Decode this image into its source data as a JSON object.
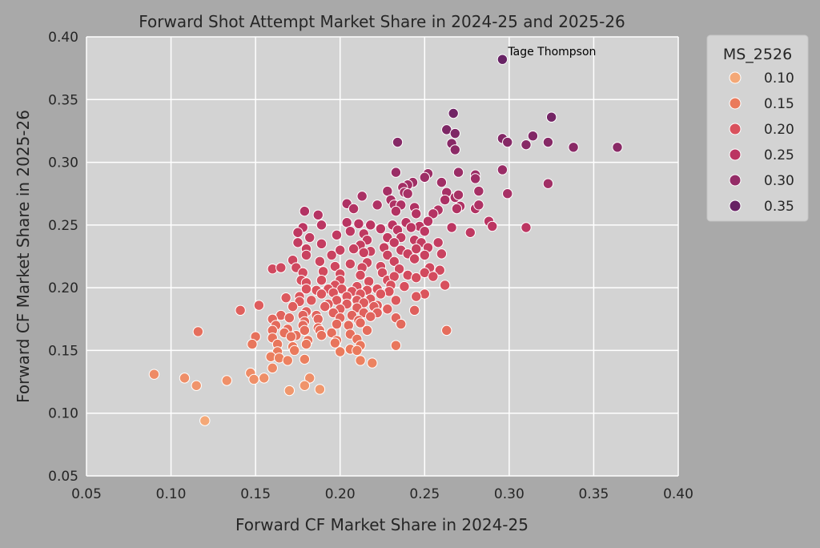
{
  "chart_data": {
    "type": "scatter",
    "title": "Forward Shot Attempt Market Share in 2024-25 and 2025-26",
    "xlabel": "Forward CF Market Share in 2024-25",
    "ylabel": "Forward CF Market Share in 2025-26",
    "xlim": [
      0.05,
      0.4
    ],
    "ylim": [
      0.05,
      0.4
    ],
    "xticks": [
      "0.05",
      "0.10",
      "0.15",
      "0.20",
      "0.25",
      "0.30",
      "0.35",
      "0.40"
    ],
    "yticks": [
      "0.05",
      "0.10",
      "0.15",
      "0.20",
      "0.25",
      "0.30",
      "0.35",
      "0.40"
    ],
    "grid": true,
    "colors": {
      "page_background": "#a9a9a9",
      "plot_background": "#d3d3d3",
      "grid": "#ffffff",
      "point_edge": "#ffffff"
    },
    "legend": {
      "title": "MS_2526",
      "placement": "outside-right-top",
      "entries": [
        {
          "label": "0.10",
          "color": "#f4a877"
        },
        {
          "label": "0.15",
          "color": "#ea7a5c"
        },
        {
          "label": "0.20",
          "color": "#d9515d"
        },
        {
          "label": "0.25",
          "color": "#bb3562"
        },
        {
          "label": "0.30",
          "color": "#942c67"
        },
        {
          "label": "0.35",
          "color": "#672264"
        }
      ]
    },
    "annotations": [
      {
        "text": "Tage Thompson",
        "x": 0.296,
        "y": 0.382
      }
    ],
    "hue_variable": "MS_2526",
    "points": [
      [
        0.296,
        0.382
      ],
      [
        0.267,
        0.339
      ],
      [
        0.325,
        0.336
      ],
      [
        0.263,
        0.326
      ],
      [
        0.268,
        0.323
      ],
      [
        0.314,
        0.321
      ],
      [
        0.296,
        0.319
      ],
      [
        0.234,
        0.316
      ],
      [
        0.266,
        0.315
      ],
      [
        0.299,
        0.316
      ],
      [
        0.31,
        0.314
      ],
      [
        0.323,
        0.316
      ],
      [
        0.338,
        0.312
      ],
      [
        0.364,
        0.312
      ],
      [
        0.268,
        0.31
      ],
      [
        0.296,
        0.294
      ],
      [
        0.233,
        0.292
      ],
      [
        0.252,
        0.291
      ],
      [
        0.27,
        0.292
      ],
      [
        0.28,
        0.29
      ],
      [
        0.25,
        0.288
      ],
      [
        0.28,
        0.287
      ],
      [
        0.243,
        0.284
      ],
      [
        0.24,
        0.282
      ],
      [
        0.237,
        0.28
      ],
      [
        0.26,
        0.284
      ],
      [
        0.323,
        0.283
      ],
      [
        0.228,
        0.277
      ],
      [
        0.238,
        0.276
      ],
      [
        0.263,
        0.276
      ],
      [
        0.282,
        0.277
      ],
      [
        0.24,
        0.275
      ],
      [
        0.268,
        0.272
      ],
      [
        0.299,
        0.275
      ],
      [
        0.213,
        0.273
      ],
      [
        0.23,
        0.27
      ],
      [
        0.262,
        0.27
      ],
      [
        0.27,
        0.274
      ],
      [
        0.204,
        0.267
      ],
      [
        0.222,
        0.266
      ],
      [
        0.232,
        0.266
      ],
      [
        0.258,
        0.262
      ],
      [
        0.271,
        0.265
      ],
      [
        0.28,
        0.263
      ],
      [
        0.282,
        0.266
      ],
      [
        0.208,
        0.263
      ],
      [
        0.236,
        0.266
      ],
      [
        0.244,
        0.264
      ],
      [
        0.245,
        0.259
      ],
      [
        0.233,
        0.261
      ],
      [
        0.255,
        0.259
      ],
      [
        0.269,
        0.263
      ],
      [
        0.179,
        0.261
      ],
      [
        0.187,
        0.258
      ],
      [
        0.189,
        0.25
      ],
      [
        0.204,
        0.252
      ],
      [
        0.211,
        0.251
      ],
      [
        0.218,
        0.25
      ],
      [
        0.231,
        0.25
      ],
      [
        0.239,
        0.252
      ],
      [
        0.247,
        0.249
      ],
      [
        0.252,
        0.253
      ],
      [
        0.288,
        0.253
      ],
      [
        0.178,
        0.248
      ],
      [
        0.206,
        0.245
      ],
      [
        0.214,
        0.243
      ],
      [
        0.224,
        0.247
      ],
      [
        0.234,
        0.246
      ],
      [
        0.242,
        0.248
      ],
      [
        0.25,
        0.245
      ],
      [
        0.266,
        0.248
      ],
      [
        0.277,
        0.244
      ],
      [
        0.29,
        0.249
      ],
      [
        0.31,
        0.248
      ],
      [
        0.175,
        0.244
      ],
      [
        0.182,
        0.24
      ],
      [
        0.198,
        0.242
      ],
      [
        0.216,
        0.238
      ],
      [
        0.228,
        0.24
      ],
      [
        0.236,
        0.24
      ],
      [
        0.244,
        0.238
      ],
      [
        0.175,
        0.236
      ],
      [
        0.189,
        0.235
      ],
      [
        0.212,
        0.234
      ],
      [
        0.232,
        0.236
      ],
      [
        0.248,
        0.236
      ],
      [
        0.258,
        0.236
      ],
      [
        0.18,
        0.231
      ],
      [
        0.2,
        0.23
      ],
      [
        0.208,
        0.231
      ],
      [
        0.218,
        0.229
      ],
      [
        0.226,
        0.232
      ],
      [
        0.236,
        0.23
      ],
      [
        0.245,
        0.231
      ],
      [
        0.252,
        0.232
      ],
      [
        0.18,
        0.226
      ],
      [
        0.195,
        0.226
      ],
      [
        0.214,
        0.228
      ],
      [
        0.228,
        0.226
      ],
      [
        0.24,
        0.227
      ],
      [
        0.25,
        0.226
      ],
      [
        0.26,
        0.227
      ],
      [
        0.172,
        0.222
      ],
      [
        0.188,
        0.221
      ],
      [
        0.206,
        0.219
      ],
      [
        0.216,
        0.22
      ],
      [
        0.232,
        0.221
      ],
      [
        0.244,
        0.223
      ],
      [
        0.174,
        0.216
      ],
      [
        0.197,
        0.217
      ],
      [
        0.213,
        0.216
      ],
      [
        0.224,
        0.217
      ],
      [
        0.235,
        0.215
      ],
      [
        0.253,
        0.216
      ],
      [
        0.259,
        0.214
      ],
      [
        0.16,
        0.215
      ],
      [
        0.165,
        0.216
      ],
      [
        0.178,
        0.212
      ],
      [
        0.19,
        0.213
      ],
      [
        0.2,
        0.211
      ],
      [
        0.212,
        0.21
      ],
      [
        0.225,
        0.212
      ],
      [
        0.24,
        0.21
      ],
      [
        0.25,
        0.212
      ],
      [
        0.255,
        0.209
      ],
      [
        0.177,
        0.206
      ],
      [
        0.189,
        0.206
      ],
      [
        0.2,
        0.206
      ],
      [
        0.217,
        0.205
      ],
      [
        0.228,
        0.206
      ],
      [
        0.232,
        0.209
      ],
      [
        0.245,
        0.208
      ],
      [
        0.18,
        0.204
      ],
      [
        0.197,
        0.202
      ],
      [
        0.21,
        0.201
      ],
      [
        0.23,
        0.202
      ],
      [
        0.238,
        0.201
      ],
      [
        0.262,
        0.202
      ],
      [
        0.18,
        0.199
      ],
      [
        0.186,
        0.198
      ],
      [
        0.193,
        0.199
      ],
      [
        0.201,
        0.199
      ],
      [
        0.207,
        0.197
      ],
      [
        0.216,
        0.198
      ],
      [
        0.222,
        0.199
      ],
      [
        0.229,
        0.197
      ],
      [
        0.176,
        0.193
      ],
      [
        0.189,
        0.195
      ],
      [
        0.196,
        0.196
      ],
      [
        0.204,
        0.193
      ],
      [
        0.212,
        0.195
      ],
      [
        0.224,
        0.195
      ],
      [
        0.25,
        0.195
      ],
      [
        0.168,
        0.192
      ],
      [
        0.183,
        0.19
      ],
      [
        0.198,
        0.19
      ],
      [
        0.21,
        0.19
      ],
      [
        0.218,
        0.191
      ],
      [
        0.233,
        0.19
      ],
      [
        0.245,
        0.193
      ],
      [
        0.176,
        0.189
      ],
      [
        0.193,
        0.187
      ],
      [
        0.204,
        0.187
      ],
      [
        0.214,
        0.188
      ],
      [
        0.222,
        0.186
      ],
      [
        0.141,
        0.182
      ],
      [
        0.152,
        0.186
      ],
      [
        0.172,
        0.185
      ],
      [
        0.18,
        0.181
      ],
      [
        0.191,
        0.185
      ],
      [
        0.2,
        0.183
      ],
      [
        0.21,
        0.184
      ],
      [
        0.22,
        0.185
      ],
      [
        0.244,
        0.182
      ],
      [
        0.165,
        0.178
      ],
      [
        0.178,
        0.178
      ],
      [
        0.186,
        0.178
      ],
      [
        0.196,
        0.18
      ],
      [
        0.207,
        0.178
      ],
      [
        0.214,
        0.18
      ],
      [
        0.222,
        0.18
      ],
      [
        0.228,
        0.183
      ],
      [
        0.16,
        0.175
      ],
      [
        0.17,
        0.176
      ],
      [
        0.179,
        0.173
      ],
      [
        0.187,
        0.175
      ],
      [
        0.2,
        0.176
      ],
      [
        0.211,
        0.174
      ],
      [
        0.218,
        0.177
      ],
      [
        0.233,
        0.176
      ],
      [
        0.162,
        0.17
      ],
      [
        0.169,
        0.167
      ],
      [
        0.178,
        0.17
      ],
      [
        0.187,
        0.168
      ],
      [
        0.198,
        0.171
      ],
      [
        0.205,
        0.17
      ],
      [
        0.212,
        0.172
      ],
      [
        0.236,
        0.171
      ],
      [
        0.16,
        0.166
      ],
      [
        0.167,
        0.164
      ],
      [
        0.174,
        0.162
      ],
      [
        0.179,
        0.166
      ],
      [
        0.188,
        0.166
      ],
      [
        0.195,
        0.164
      ],
      [
        0.206,
        0.163
      ],
      [
        0.216,
        0.166
      ],
      [
        0.263,
        0.166
      ],
      [
        0.116,
        0.165
      ],
      [
        0.15,
        0.161
      ],
      [
        0.16,
        0.16
      ],
      [
        0.171,
        0.161
      ],
      [
        0.181,
        0.158
      ],
      [
        0.189,
        0.162
      ],
      [
        0.198,
        0.158
      ],
      [
        0.21,
        0.159
      ],
      [
        0.148,
        0.155
      ],
      [
        0.163,
        0.155
      ],
      [
        0.172,
        0.153
      ],
      [
        0.18,
        0.155
      ],
      [
        0.197,
        0.156
      ],
      [
        0.206,
        0.151
      ],
      [
        0.212,
        0.154
      ],
      [
        0.233,
        0.154
      ],
      [
        0.163,
        0.149
      ],
      [
        0.173,
        0.15
      ],
      [
        0.2,
        0.149
      ],
      [
        0.21,
        0.15
      ],
      [
        0.159,
        0.145
      ],
      [
        0.164,
        0.144
      ],
      [
        0.179,
        0.143
      ],
      [
        0.169,
        0.142
      ],
      [
        0.212,
        0.142
      ],
      [
        0.219,
        0.14
      ],
      [
        0.16,
        0.136
      ],
      [
        0.09,
        0.131
      ],
      [
        0.147,
        0.132
      ],
      [
        0.155,
        0.128
      ],
      [
        0.108,
        0.128
      ],
      [
        0.133,
        0.126
      ],
      [
        0.149,
        0.127
      ],
      [
        0.182,
        0.128
      ],
      [
        0.115,
        0.122
      ],
      [
        0.179,
        0.122
      ],
      [
        0.17,
        0.118
      ],
      [
        0.188,
        0.119
      ],
      [
        0.12,
        0.094
      ]
    ]
  }
}
